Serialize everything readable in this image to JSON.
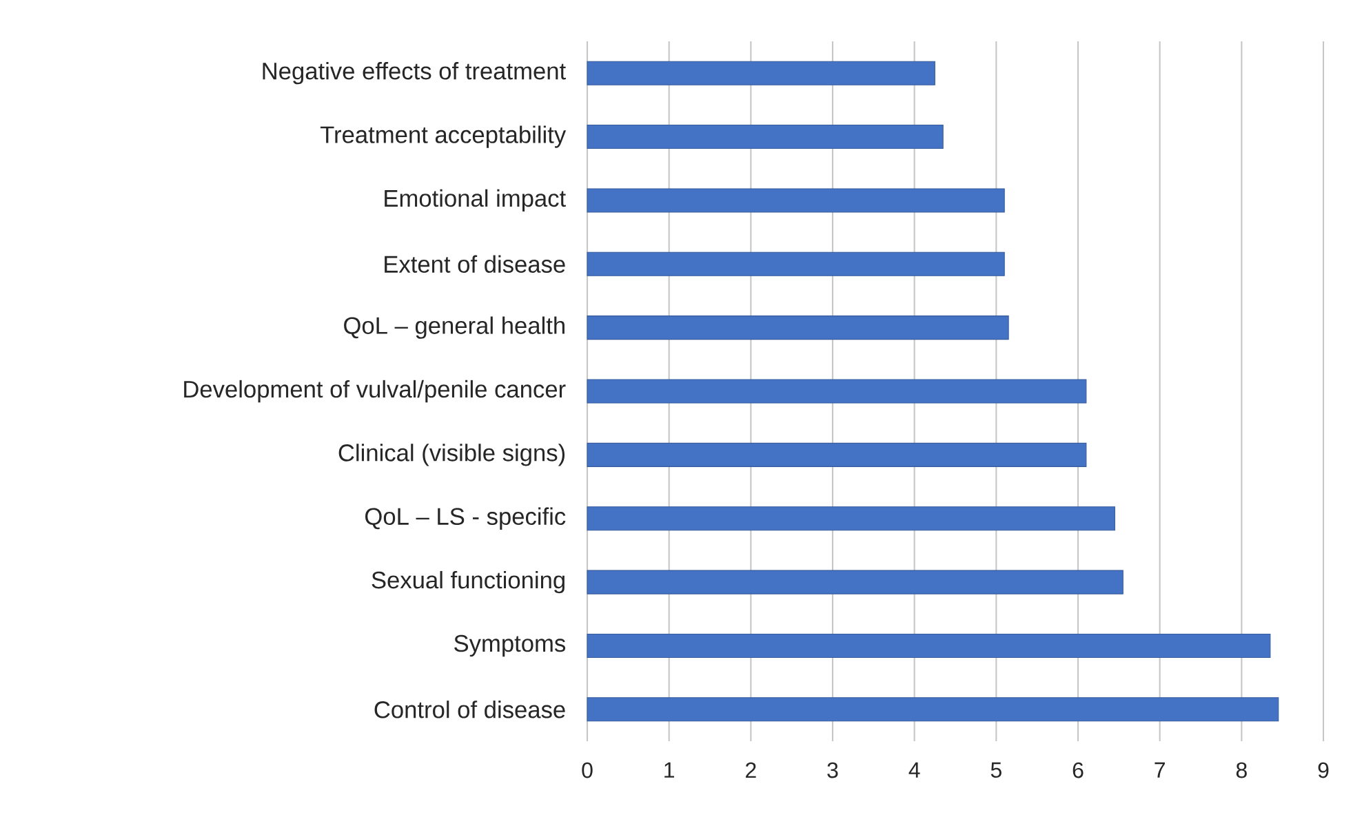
{
  "chart_data": {
    "type": "bar",
    "orientation": "horizontal",
    "categories": [
      "Negative effects of treatment",
      "Treatment acceptability",
      "Emotional impact",
      "Extent of disease",
      "QoL – general health",
      "Development of vulval/penile cancer",
      "Clinical (visible signs)",
      "QoL – LS - specific",
      "Sexual functioning",
      "Symptoms",
      "Control of disease"
    ],
    "values": [
      4.25,
      4.35,
      5.1,
      5.1,
      5.15,
      6.1,
      6.1,
      6.45,
      6.55,
      8.35,
      8.45
    ],
    "color": "#4472c4",
    "xlim": [
      0,
      9
    ],
    "xticks": [
      0,
      1,
      2,
      3,
      4,
      5,
      6,
      7,
      8,
      9
    ],
    "grid": "x"
  }
}
